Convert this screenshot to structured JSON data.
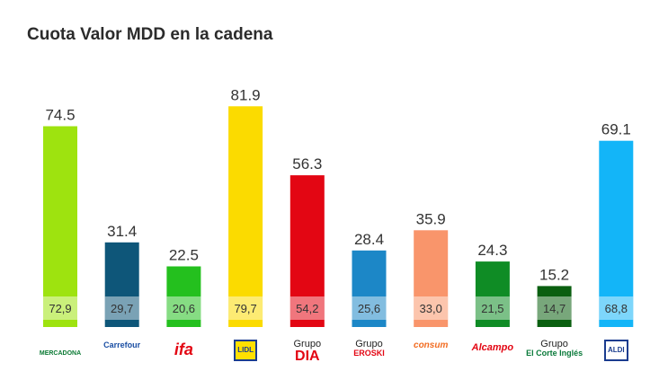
{
  "chart_data": {
    "type": "bar",
    "title": "Cuota Valor MDD en la cadena",
    "categories": [
      "Mercadona",
      "Carrefour",
      "ifa",
      "Lidl",
      "Grupo DIA",
      "Grupo Eroski",
      "Consum",
      "Alcampo",
      "Grupo El Corte Inglés",
      "Aldi"
    ],
    "series": [
      {
        "values": [
          74.5,
          31.4,
          22.5,
          81.9,
          56.3,
          28.4,
          35.9,
          24.3,
          15.2,
          69.1
        ]
      },
      {
        "values": [
          "72,9",
          "29,7",
          "20,6",
          "79,7",
          "54,2",
          "25,6",
          "33,0",
          "21,5",
          "14,7",
          "68,8"
        ]
      }
    ],
    "labels": [
      "74.5",
      "31.4",
      "22.5",
      "81.9",
      "56.3",
      "28.4",
      "35.9",
      "24.3",
      "15.2",
      "69.1"
    ],
    "colors": [
      "#9ee30f",
      "#0e5679",
      "#24c01e",
      "#fbdb00",
      "#e30613",
      "#1c87c7",
      "#f9956b",
      "#0f8c25",
      "#0a5f10",
      "#13b5f8"
    ],
    "xlabel": "",
    "ylabel": "",
    "ylim": [
      0,
      90
    ],
    "grid": false,
    "legend": "none"
  },
  "logos": [
    {
      "text": "MERCADONA",
      "color": "#0b7a34",
      "icon": "mercadona-icon"
    },
    {
      "text": "Carrefour",
      "color": "#1a4ea3",
      "icon": "carrefour-icon"
    },
    {
      "text": "ifa",
      "color": "#e30613",
      "icon": "ifa-icon"
    },
    {
      "text": "LIDL",
      "color": "#1a3c8f",
      "icon": "lidl-icon"
    },
    {
      "grupo": "Grupo",
      "text": "DIA",
      "color": "#e30613",
      "icon": "dia-icon"
    },
    {
      "grupo": "Grupo",
      "text": "EROSKI",
      "color": "#e30613",
      "icon": "eroski-icon"
    },
    {
      "text": "consum",
      "color": "#f26c21",
      "icon": "consum-icon"
    },
    {
      "text": "Alcampo",
      "color": "#e30613",
      "icon": "alcampo-icon"
    },
    {
      "grupo": "Grupo",
      "text": "El Corte Inglés",
      "color": "#0a7a3a",
      "icon": "el-corte-ingles-icon"
    },
    {
      "text": "ALDI",
      "color": "#1a3c8f",
      "icon": "aldi-icon"
    }
  ]
}
